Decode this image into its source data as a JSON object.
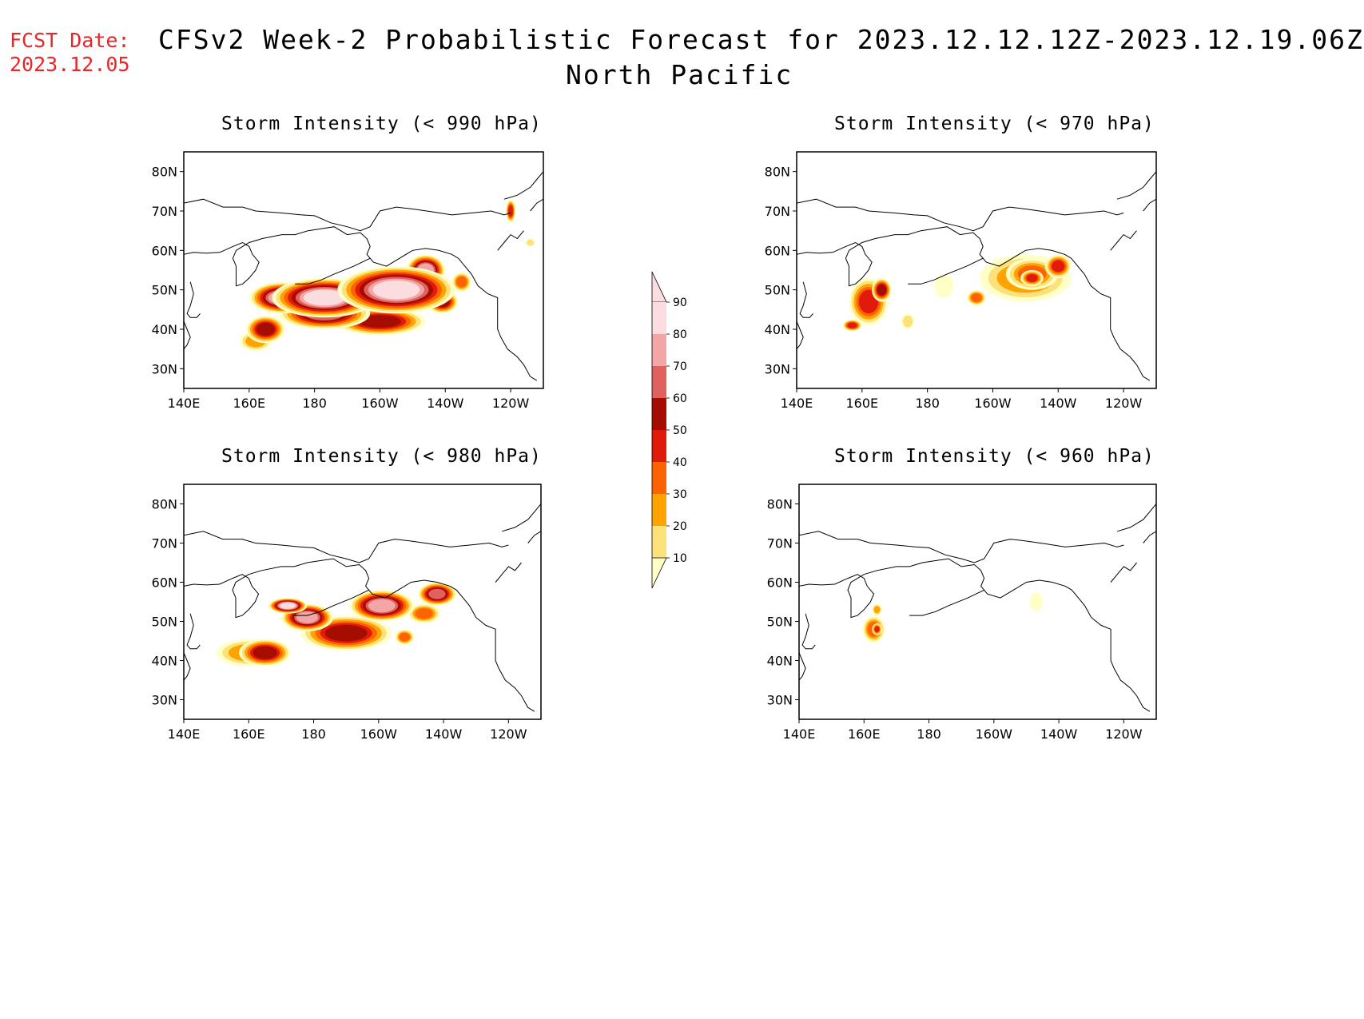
{
  "header": {
    "fcst_label": "FCST Date:",
    "fcst_date": "2023.12.05",
    "title": "CFSv2 Week-2 Probabilistic Forecast for 2023.12.12.12Z-2023.12.19.06Z",
    "subtitle": "North Pacific"
  },
  "colors": {
    "scale": [
      "#ffffc8",
      "#fde27b",
      "#ffa300",
      "#fd6301",
      "#e01b0c",
      "#a40d00",
      "#e0625e",
      "#f2a6a6",
      "#fbdde0"
    ],
    "frame": "#000000",
    "fcst_text": "#e8262a"
  },
  "legend": {
    "thresholds": [
      "10",
      "20",
      "30",
      "40",
      "50",
      "60",
      "70",
      "80",
      "90"
    ]
  },
  "axes": {
    "lat_labels": [
      "30N",
      "40N",
      "50N",
      "60N",
      "70N",
      "80N"
    ],
    "lon_labels": [
      "140E",
      "160E",
      "180",
      "160W",
      "140W",
      "120W"
    ],
    "lat_values": [
      30,
      40,
      50,
      60,
      70,
      80
    ],
    "lon_values": [
      140,
      160,
      180,
      200,
      220,
      240
    ],
    "lat_range": [
      25,
      85
    ],
    "lon_range": [
      140,
      250
    ]
  },
  "panels": [
    {
      "id": "p990",
      "title": "Storm Intensity (< 990 hPa)",
      "blobs": [
        {
          "lon": 165,
          "lat": 40,
          "rlon": 6,
          "rlat": 3.5,
          "level": 6
        },
        {
          "lon": 183,
          "lat": 44,
          "rlon": 14,
          "rlat": 4,
          "level": 7
        },
        {
          "lon": 183,
          "lat": 48,
          "rlon": 16,
          "rlat": 5,
          "level": 9
        },
        {
          "lon": 205,
          "lat": 50,
          "rlon": 18,
          "rlat": 6,
          "level": 9
        },
        {
          "lon": 170,
          "lat": 48,
          "rlon": 10,
          "rlat": 4,
          "level": 8
        },
        {
          "lon": 214,
          "lat": 55,
          "rlon": 6,
          "rlat": 4,
          "level": 8
        },
        {
          "lon": 200,
          "lat": 42,
          "rlon": 14,
          "rlat": 3.5,
          "level": 6
        },
        {
          "lon": 219,
          "lat": 47,
          "rlon": 5,
          "rlat": 3,
          "level": 6
        },
        {
          "lon": 225,
          "lat": 52,
          "rlon": 3,
          "rlat": 2.5,
          "level": 4
        },
        {
          "lon": 162,
          "lat": 37,
          "rlon": 5,
          "rlat": 2.5,
          "level": 3
        },
        {
          "lon": 240,
          "lat": 70,
          "rlon": 1.5,
          "rlat": 3,
          "level": 5
        },
        {
          "lon": 246,
          "lat": 62,
          "rlon": 1.5,
          "rlat": 1,
          "level": 2
        }
      ]
    },
    {
      "id": "p970",
      "title": "Storm Intensity (< 970 hPa)",
      "blobs": [
        {
          "lon": 162,
          "lat": 47,
          "rlon": 6,
          "rlat": 6,
          "level": 5
        },
        {
          "lon": 166,
          "lat": 50,
          "rlon": 3,
          "rlat": 3,
          "level": 6
        },
        {
          "lon": 157,
          "lat": 41,
          "rlon": 3,
          "rlat": 1.5,
          "level": 5
        },
        {
          "lon": 174,
          "lat": 42,
          "rlon": 2,
          "rlat": 2,
          "level": 2
        },
        {
          "lon": 185,
          "lat": 51,
          "rlon": 3,
          "rlat": 3,
          "level": 1
        },
        {
          "lon": 210,
          "lat": 53,
          "rlon": 14,
          "rlat": 6,
          "level": 3
        },
        {
          "lon": 212,
          "lat": 54,
          "rlon": 8,
          "rlat": 4,
          "level": 4
        },
        {
          "lon": 212,
          "lat": 53,
          "rlon": 3.5,
          "rlat": 2,
          "level": 5
        },
        {
          "lon": 195,
          "lat": 48,
          "rlon": 3,
          "rlat": 2,
          "level": 4
        },
        {
          "lon": 220,
          "lat": 56,
          "rlon": 4,
          "rlat": 3,
          "level": 5
        },
        {
          "lon": 201,
          "lat": 55,
          "rlon": 2,
          "rlat": 3,
          "level": 2
        }
      ]
    },
    {
      "id": "p980",
      "title": "Storm Intensity (< 980 hPa)",
      "blobs": [
        {
          "lon": 165,
          "lat": 42,
          "rlon": 8,
          "rlat": 3.5,
          "level": 6
        },
        {
          "lon": 190,
          "lat": 47,
          "rlon": 14,
          "rlat": 4.5,
          "level": 6
        },
        {
          "lon": 178,
          "lat": 51,
          "rlon": 8,
          "rlat": 3.5,
          "level": 8
        },
        {
          "lon": 201,
          "lat": 54,
          "rlon": 10,
          "rlat": 4,
          "level": 8
        },
        {
          "lon": 218,
          "lat": 57,
          "rlon": 6,
          "rlat": 3,
          "level": 7
        },
        {
          "lon": 214,
          "lat": 52,
          "rlon": 5,
          "rlat": 2.5,
          "level": 4
        },
        {
          "lon": 208,
          "lat": 46,
          "rlon": 3,
          "rlat": 2,
          "level": 4
        },
        {
          "lon": 172,
          "lat": 54,
          "rlon": 6,
          "rlat": 2,
          "level": 9
        },
        {
          "lon": 160,
          "lat": 42,
          "rlon": 10,
          "rlat": 3.5,
          "level": 3
        }
      ]
    },
    {
      "id": "p960",
      "title": "Storm Intensity (< 960 hPa)",
      "blobs": [
        {
          "lon": 163,
          "lat": 48,
          "rlon": 3.5,
          "rlat": 3.5,
          "level": 4
        },
        {
          "lon": 164,
          "lat": 53,
          "rlon": 1.5,
          "rlat": 1.5,
          "level": 3
        },
        {
          "lon": 164,
          "lat": 48,
          "rlon": 1.5,
          "rlat": 1.5,
          "level": 5
        },
        {
          "lon": 213,
          "lat": 55,
          "rlon": 2,
          "rlat": 2.5,
          "level": 1
        }
      ]
    }
  ]
}
